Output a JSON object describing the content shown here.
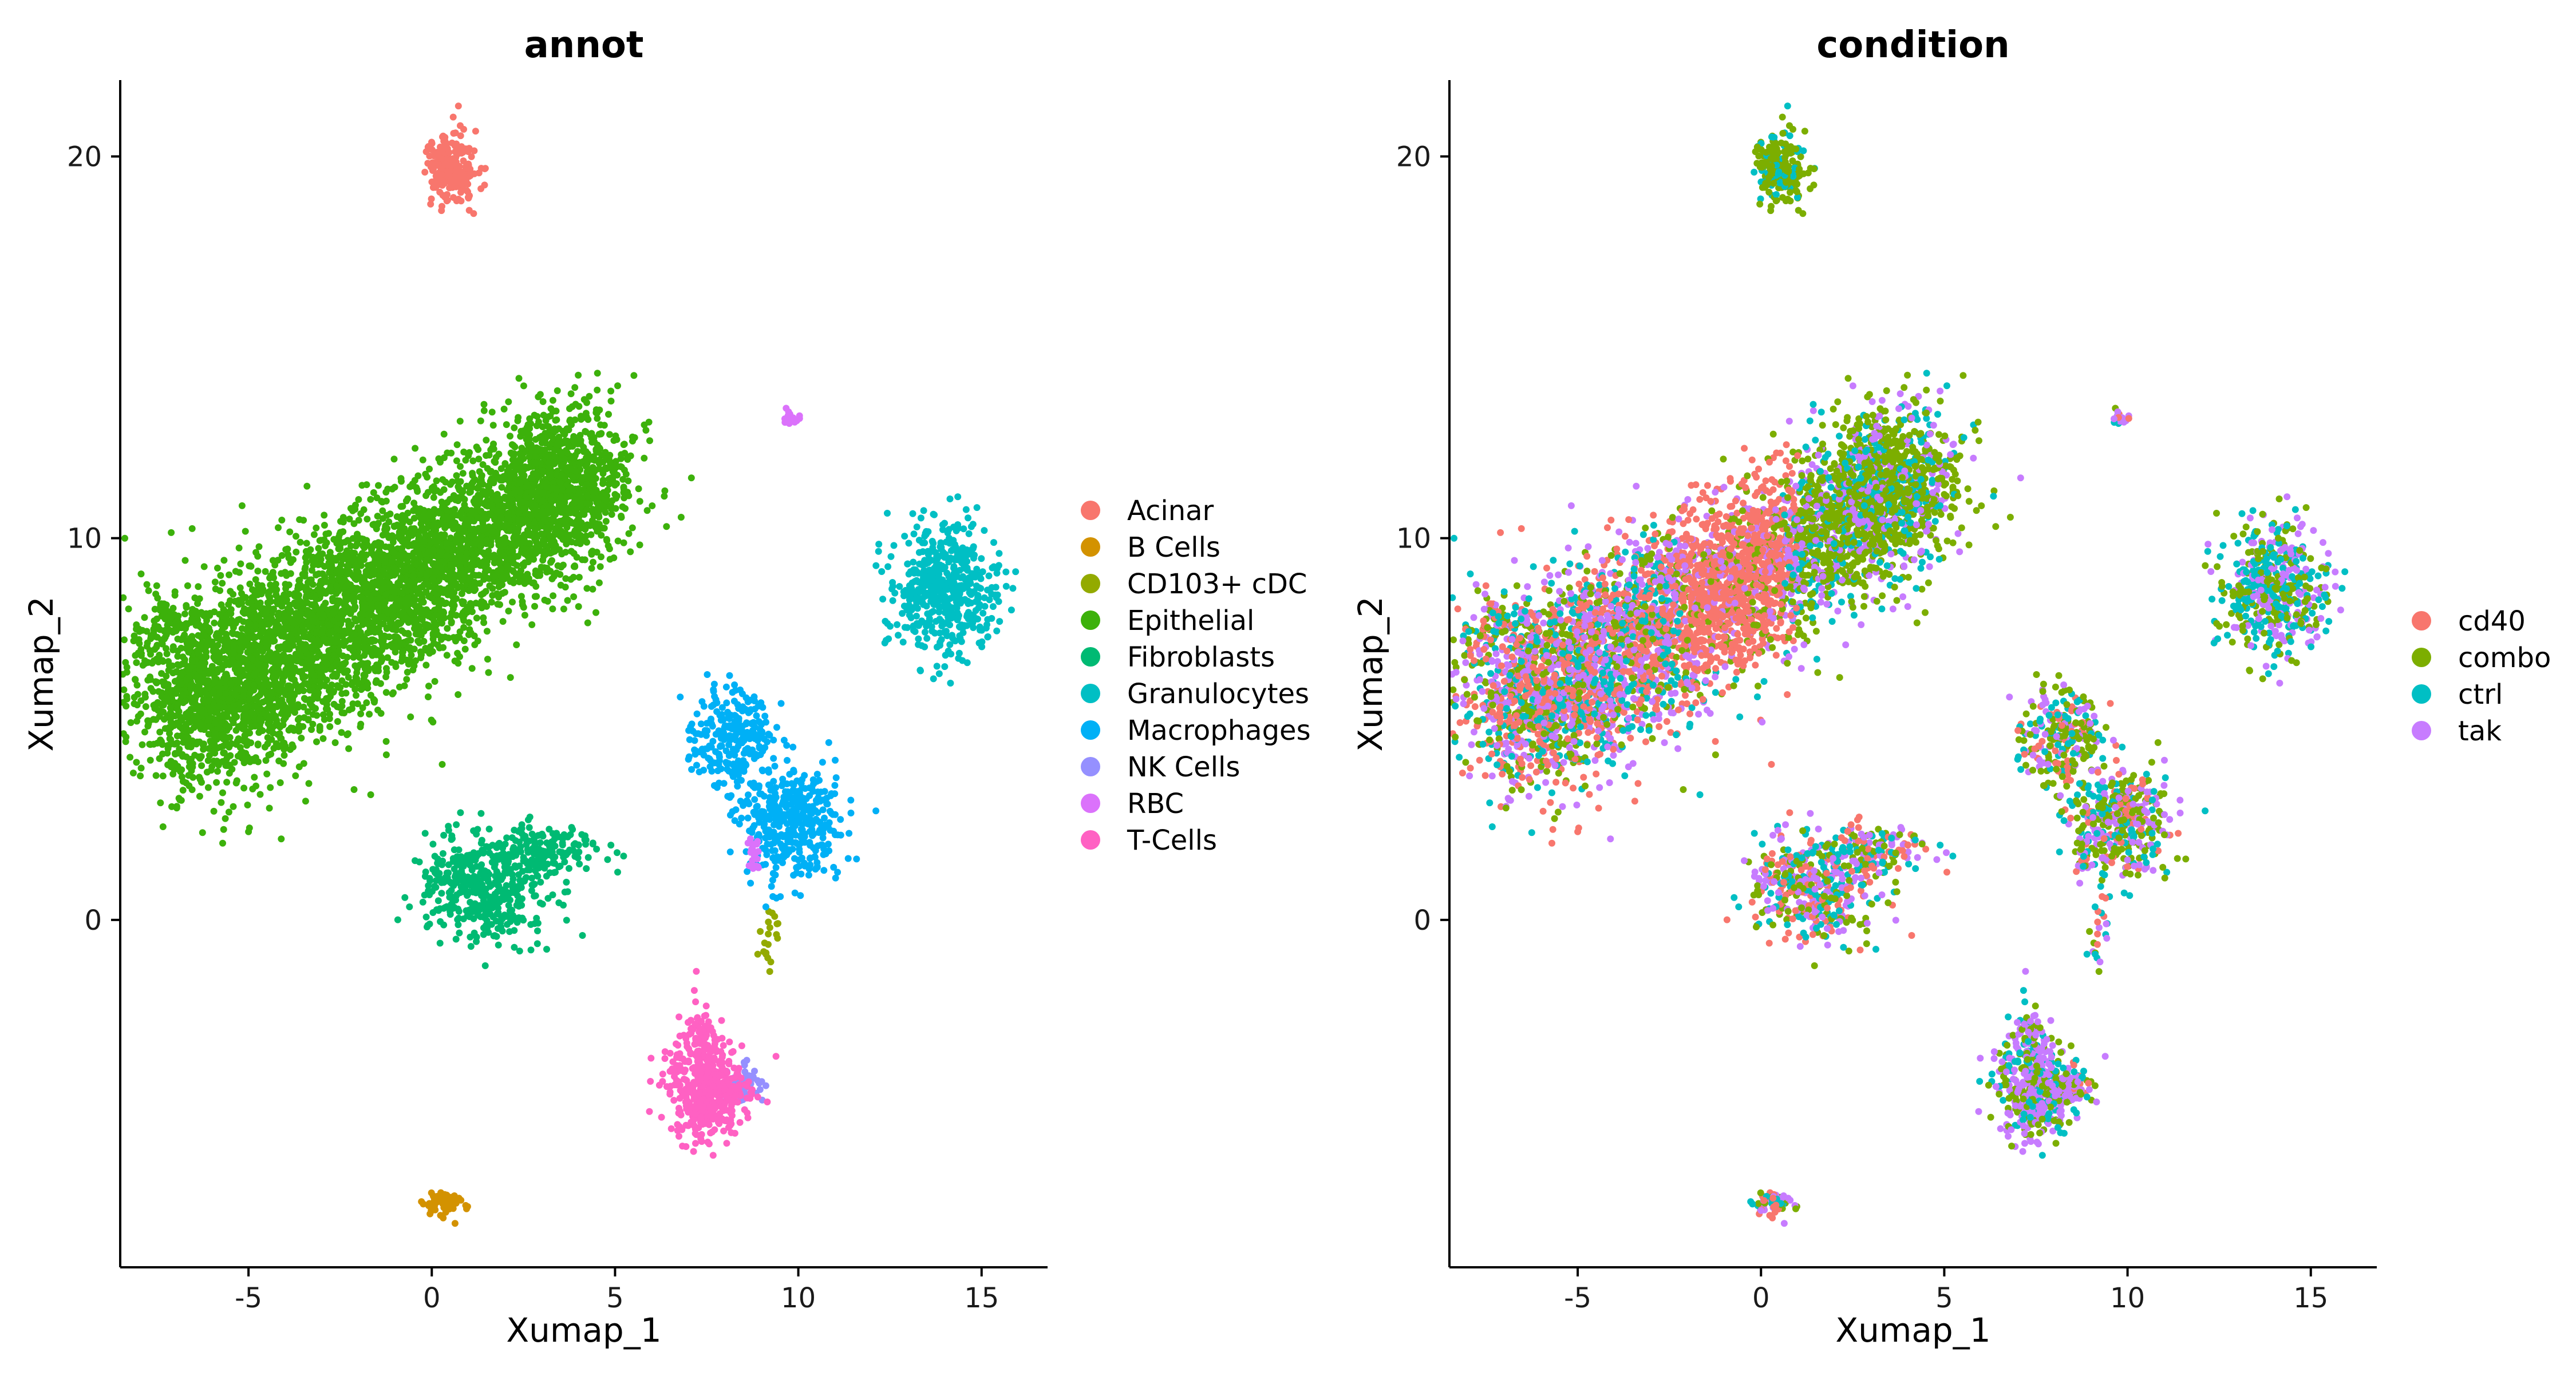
{
  "chart_data": [
    {
      "type": "scatter",
      "title": "annot",
      "xlabel": "Xumap_1",
      "ylabel": "Xumap_2",
      "xlim": [
        -8.5,
        16.8
      ],
      "ylim": [
        -9.1,
        22.0
      ],
      "xticks": [
        -5,
        0,
        5,
        10,
        15
      ],
      "yticks": [
        0,
        10,
        20
      ],
      "grid": false,
      "legend": "right",
      "groups": [
        {
          "name": "Acinar",
          "color": "#F8766D"
        },
        {
          "name": "B Cells",
          "color": "#D39200"
        },
        {
          "name": "CD103+ cDC",
          "color": "#93AA00"
        },
        {
          "name": "Epithelial",
          "color": "#3CB10B"
        },
        {
          "name": "Fibroblasts",
          "color": "#00BA73"
        },
        {
          "name": "Granulocytes",
          "color": "#00BFC4"
        },
        {
          "name": "Macrophages",
          "color": "#00B0F6"
        },
        {
          "name": "NK Cells",
          "color": "#9590FF"
        },
        {
          "name": "RBC",
          "color": "#DB72FB"
        },
        {
          "name": "T-Cells",
          "color": "#FF61C3"
        }
      ]
    },
    {
      "type": "scatter",
      "title": "condition",
      "xlabel": "Xumap_1",
      "ylabel": "Xumap_2",
      "xlim": [
        -8.5,
        16.8
      ],
      "ylim": [
        -9.1,
        22.0
      ],
      "xticks": [
        -5,
        0,
        5,
        10,
        15
      ],
      "yticks": [
        0,
        10,
        20
      ],
      "grid": false,
      "legend": "right",
      "groups": [
        {
          "name": "cd40",
          "color": "#F8766D"
        },
        {
          "name": "combo",
          "color": "#7CAE00"
        },
        {
          "name": "ctrl",
          "color": "#00BFC4"
        },
        {
          "name": "tak",
          "color": "#C77CFF"
        }
      ]
    }
  ]
}
